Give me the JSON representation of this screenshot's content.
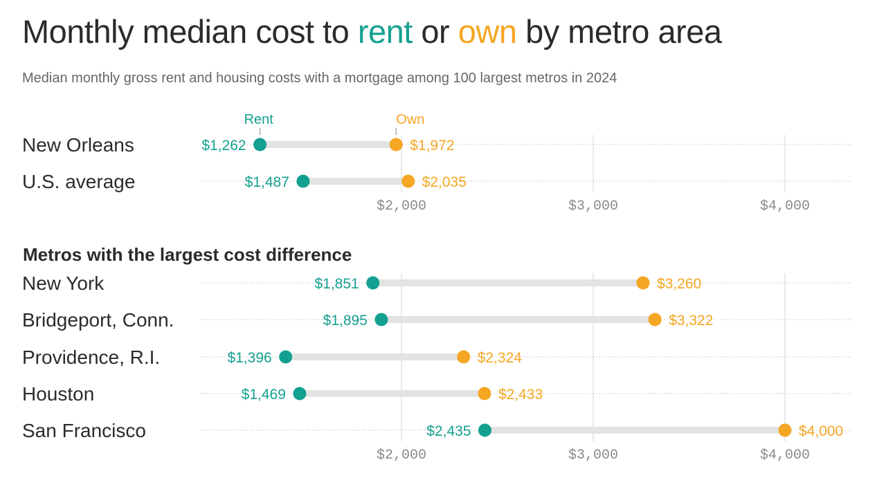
{
  "title": {
    "prefix": "Monthly median cost to ",
    "rent_word": "rent",
    "middle": " or ",
    "own_word": "own",
    "suffix": " by metro area"
  },
  "subtitle": "Median monthly gross rent and housing costs with a mortgage among 100 largest metros in 2024",
  "colors": {
    "rent": "#14A090",
    "own": "#F5A623",
    "text": "#2b2b2b",
    "muted": "#8a8a8a",
    "bar": "#e3e3e3"
  },
  "legend": {
    "rent": "Rent",
    "own": "Own"
  },
  "chart_data": [
    {
      "type": "dumbbell",
      "title": "",
      "xlim": [
        950,
        4350
      ],
      "ticks": [
        2000,
        3000,
        4000
      ],
      "tick_labels": [
        "$2,000",
        "$3,000",
        "$4,000"
      ],
      "series": [
        {
          "name": "Rent"
        },
        {
          "name": "Own"
        }
      ],
      "rows": [
        {
          "label": "New Orleans",
          "rent": 1262,
          "own": 1972,
          "rent_label": "$1,262",
          "own_label": "$1,972"
        },
        {
          "label": "U.S. average",
          "rent": 1487,
          "own": 2035,
          "rent_label": "$1,487",
          "own_label": "$2,035"
        }
      ]
    },
    {
      "type": "dumbbell",
      "title": "Metros with the largest cost difference",
      "xlim": [
        950,
        4350
      ],
      "ticks": [
        2000,
        3000,
        4000
      ],
      "tick_labels": [
        "$2,000",
        "$3,000",
        "$4,000"
      ],
      "series": [
        {
          "name": "Rent"
        },
        {
          "name": "Own"
        }
      ],
      "rows": [
        {
          "label": "New York",
          "rent": 1851,
          "own": 3260,
          "rent_label": "$1,851",
          "own_label": "$3,260"
        },
        {
          "label": "Bridgeport, Conn.",
          "rent": 1895,
          "own": 3322,
          "rent_label": "$1,895",
          "own_label": "$3,322"
        },
        {
          "label": "Providence, R.I.",
          "rent": 1396,
          "own": 2324,
          "rent_label": "$1,396",
          "own_label": "$2,324"
        },
        {
          "label": "Houston",
          "rent": 1469,
          "own": 2433,
          "rent_label": "$1,469",
          "own_label": "$2,433"
        },
        {
          "label": "San Francisco",
          "rent": 2435,
          "own": 4000,
          "rent_label": "$2,435",
          "own_label": "$4,000"
        }
      ]
    }
  ]
}
